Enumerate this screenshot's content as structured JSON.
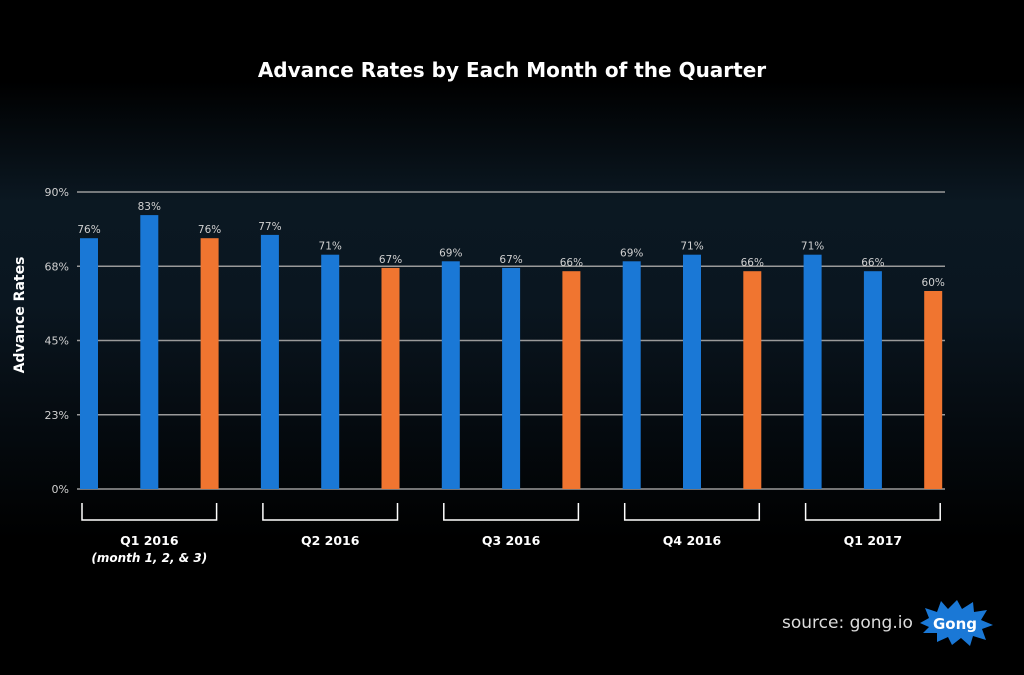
{
  "chart_data": {
    "type": "bar",
    "title": "Advance Rates by Each Month of the Quarter",
    "ylabel": "Advance Rates",
    "xlabel": "",
    "ylim": [
      0,
      90
    ],
    "yticks": [
      "0%",
      "23%",
      "45%",
      "68%",
      "90%"
    ],
    "grid": true,
    "groups": [
      {
        "label": "Q1 2016",
        "sublabel": "(month 1, 2, & 3)",
        "values": [
          76,
          83,
          76
        ]
      },
      {
        "label": "Q2 2016",
        "sublabel": "",
        "values": [
          77,
          71,
          67
        ]
      },
      {
        "label": "Q3 2016",
        "sublabel": "",
        "values": [
          69,
          67,
          66
        ]
      },
      {
        "label": "Q4 2016",
        "sublabel": "",
        "values": [
          69,
          71,
          66
        ]
      },
      {
        "label": "Q1 2017",
        "sublabel": "",
        "values": [
          71,
          66,
          60
        ]
      }
    ],
    "colors": {
      "month_1_2": "#1a78d6",
      "month_3": "#f07530",
      "grid": "#9a9a9a",
      "text": "#d0d0d0"
    }
  },
  "source": "source: gong.io",
  "logo_text": "Gong"
}
